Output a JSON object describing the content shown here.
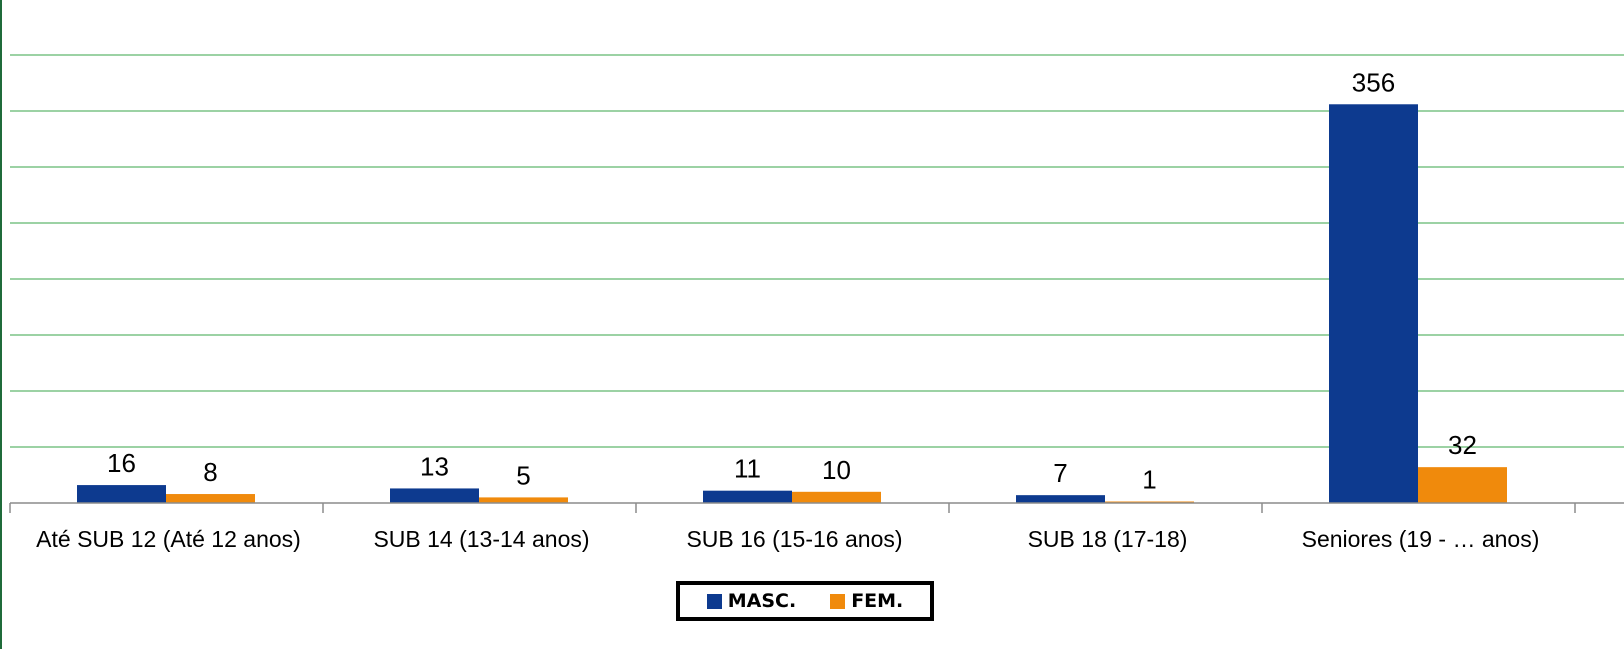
{
  "chart_data": {
    "type": "bar",
    "categories": [
      "Até SUB 12 (Até 12 anos)",
      "SUB 14 (13-14 anos)",
      "SUB 16 (15-16 anos)",
      "SUB 18 (17-18)",
      "Seniores (19 - … anos)"
    ],
    "series": [
      {
        "name": "MASC.",
        "color": "#0D3A8F",
        "values": [
          16,
          13,
          11,
          7,
          356
        ]
      },
      {
        "name": "FEM.",
        "color": "#F08A0C",
        "values": [
          8,
          5,
          10,
          1,
          32
        ]
      }
    ],
    "ylim": [
      0,
      400
    ],
    "grid": true,
    "legend": "bottom-center"
  }
}
